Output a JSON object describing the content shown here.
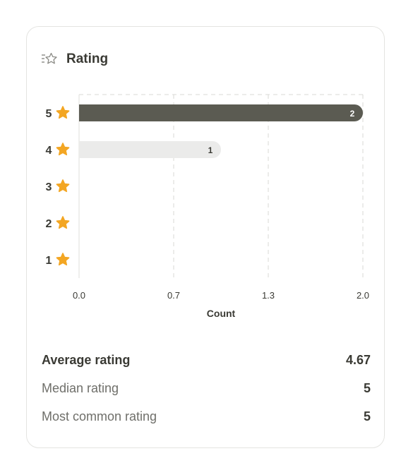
{
  "card": {
    "title": "Rating",
    "icon": "star-list-icon"
  },
  "chart_data": {
    "type": "bar",
    "orientation": "horizontal",
    "categories": [
      "5",
      "4",
      "3",
      "2",
      "1"
    ],
    "values": [
      2,
      1,
      0,
      0,
      0
    ],
    "category_icon": "star-icon",
    "xlabel": "Count",
    "ylabel": "",
    "xlim": [
      0,
      2
    ],
    "x_ticks": [
      "0.0",
      "0.7",
      "1.3",
      "2.0"
    ],
    "grid": true,
    "bar_colors": {
      "max": "#5b5b52",
      "other": "#ebebea"
    },
    "data_label_colors": {
      "max": "#ffffff",
      "other": "#3a3a34"
    }
  },
  "stats": [
    {
      "label": "Average rating",
      "value": "4.67",
      "primary": true
    },
    {
      "label": "Median rating",
      "value": "5",
      "primary": false
    },
    {
      "label": "Most common rating",
      "value": "5",
      "primary": false
    }
  ],
  "colors": {
    "star": "#f3a623",
    "text": "#3a3a34",
    "muted": "#6f6f6a",
    "border": "#e4e4e1",
    "grid": "#d9d9d6"
  }
}
